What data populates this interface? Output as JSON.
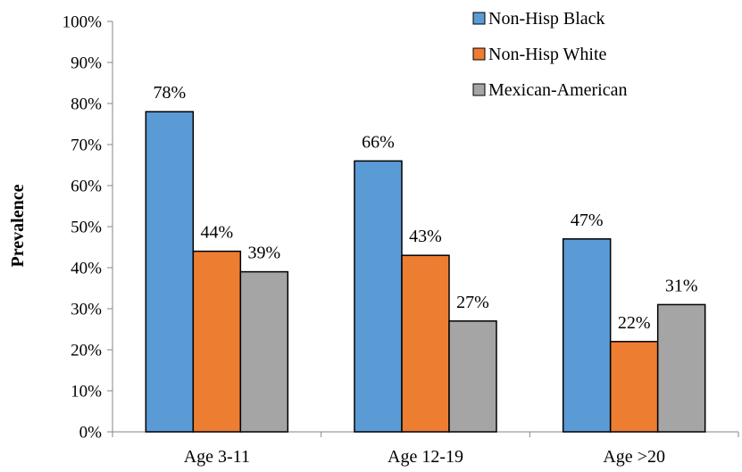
{
  "chart_data": {
    "type": "bar",
    "title": "",
    "xlabel": "",
    "ylabel": "Prevalence",
    "categories": [
      "Age 3-11",
      "Age 12-19",
      "Age >20"
    ],
    "series": [
      {
        "name": "Non-Hisp Black",
        "color": "#5B9BD5",
        "values": [
          78,
          66,
          47
        ],
        "labels": [
          "78%",
          "66%",
          "47%"
        ]
      },
      {
        "name": "Non-Hisp White",
        "color": "#ED7D31",
        "values": [
          44,
          43,
          22
        ],
        "labels": [
          "44%",
          "43%",
          "22%"
        ]
      },
      {
        "name": "Mexican-American",
        "color": "#A5A5A5",
        "values": [
          39,
          27,
          31
        ],
        "labels": [
          "39%",
          "27%",
          "31%"
        ]
      }
    ],
    "ylim": [
      0,
      100
    ],
    "yticks": [
      "0%",
      "10%",
      "20%",
      "30%",
      "40%",
      "50%",
      "60%",
      "70%",
      "80%",
      "90%",
      "100%"
    ],
    "grid": false,
    "legend": "top-right"
  }
}
